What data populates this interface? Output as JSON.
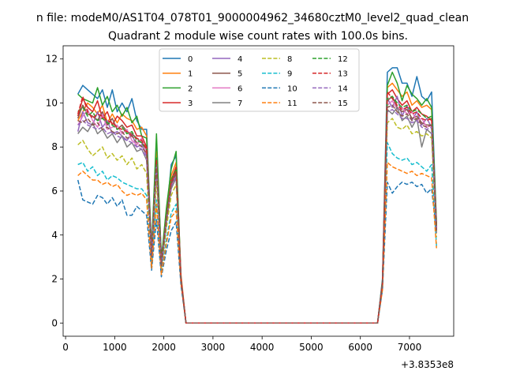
{
  "figure": {
    "suptitle": "n file: modeM0/AS1T04_078T01_9000004962_34680cztM0_level2_quad_clean",
    "title": "Quadrant 2 module wise count rates with 100.0s bins."
  },
  "chart_data": {
    "type": "line",
    "title": "Quadrant 2 module wise count rates with 100.0s bins.",
    "xlabel": "",
    "ylabel": "",
    "x_offset_label": "+3.8353e8",
    "xlim": [
      -50,
      7900
    ],
    "ylim": [
      -0.6,
      12.6
    ],
    "x_ticks": [
      0,
      1000,
      2000,
      3000,
      4000,
      5000,
      6000,
      7000
    ],
    "x_tick_labels": [
      "0",
      "1000",
      "2000",
      "3000",
      "4000",
      "5000",
      "6000",
      "7000"
    ],
    "y_ticks": [
      0,
      2,
      4,
      6,
      8,
      10,
      12
    ],
    "y_tick_labels": [
      "0",
      "2",
      "4",
      "6",
      "8",
      "10",
      "12"
    ],
    "grid": false,
    "legend": {
      "placement": "top-center",
      "columns": 4
    },
    "x": [
      250,
      350,
      450,
      550,
      650,
      750,
      850,
      950,
      1050,
      1150,
      1250,
      1350,
      1450,
      1550,
      1650,
      1750,
      1850,
      1950,
      2050,
      2150,
      2250,
      2350,
      2450,
      2550,
      6350,
      6450,
      6550,
      6650,
      6750,
      6850,
      6950,
      7050,
      7150,
      7250,
      7350,
      7450,
      7550
    ],
    "series": [
      {
        "name": "0",
        "color": "#1f77b4",
        "dash": "solid",
        "values": [
          10.4,
          10.8,
          10.6,
          10.4,
          10.2,
          10.6,
          9.8,
          10.6,
          9.6,
          10.0,
          9.6,
          10.2,
          9.2,
          8.8,
          8.8,
          3.4,
          8.0,
          3.0,
          4.8,
          7.2,
          7.6,
          2.0,
          0.0,
          0.0,
          0.0,
          2.0,
          11.4,
          11.6,
          11.6,
          10.9,
          10.9,
          10.3,
          11.2,
          10.3,
          10.1,
          10.5,
          4.5
        ]
      },
      {
        "name": "1",
        "color": "#ff7f0e",
        "dash": "solid",
        "values": [
          9.2,
          9.6,
          10.0,
          9.8,
          9.5,
          9.9,
          9.1,
          9.5,
          9.1,
          9.5,
          9.3,
          9.2,
          8.8,
          8.9,
          8.5,
          3.2,
          7.8,
          2.8,
          4.9,
          6.7,
          7.3,
          2.2,
          0.0,
          0.0,
          0.0,
          1.9,
          10.7,
          10.9,
          10.6,
          10.3,
          10.5,
          9.9,
          10.1,
          9.8,
          9.9,
          9.7,
          4.4
        ]
      },
      {
        "name": "2",
        "color": "#2ca02c",
        "dash": "solid",
        "values": [
          10.4,
          10.2,
          10.1,
          10.0,
          10.7,
          9.9,
          10.3,
          9.6,
          9.9,
          9.4,
          9.8,
          9.1,
          9.4,
          8.5,
          8.4,
          3.3,
          8.6,
          2.9,
          5.2,
          7.0,
          7.8,
          2.0,
          0.0,
          0.0,
          0.0,
          1.9,
          10.8,
          11.4,
          10.9,
          10.1,
          10.8,
          10.4,
          10.2,
          9.9,
          10.2,
          9.8,
          4.5
        ]
      },
      {
        "name": "3",
        "color": "#d62728",
        "dash": "solid",
        "values": [
          9.4,
          10.2,
          9.8,
          9.6,
          10.1,
          9.3,
          9.6,
          9.0,
          9.4,
          9.2,
          8.9,
          9.0,
          8.5,
          8.5,
          8.0,
          3.1,
          7.4,
          2.7,
          4.8,
          6.5,
          7.1,
          2.0,
          0.0,
          0.0,
          0.0,
          1.8,
          10.4,
          10.6,
          10.2,
          9.9,
          10.1,
          9.6,
          9.8,
          9.5,
          9.4,
          9.2,
          4.3
        ]
      },
      {
        "name": "4",
        "color": "#9467bd",
        "dash": "solid",
        "values": [
          8.7,
          9.6,
          9.1,
          9.0,
          9.6,
          8.9,
          9.2,
          8.6,
          8.7,
          8.5,
          8.3,
          8.6,
          8.0,
          8.1,
          7.6,
          3.0,
          7.2,
          2.6,
          4.6,
          6.3,
          6.8,
          2.0,
          0.0,
          0.0,
          0.0,
          1.8,
          10.2,
          9.8,
          10.3,
          9.4,
          9.9,
          9.2,
          9.6,
          9.0,
          9.3,
          8.9,
          4.2
        ]
      },
      {
        "name": "5",
        "color": "#8c564b",
        "dash": "solid",
        "values": [
          9.3,
          9.9,
          9.5,
          9.4,
          9.2,
          9.6,
          9.0,
          9.3,
          8.8,
          9.0,
          8.7,
          8.6,
          8.4,
          8.2,
          7.8,
          3.1,
          7.3,
          2.7,
          4.7,
          6.4,
          6.9,
          2.0,
          0.0,
          0.0,
          0.0,
          1.8,
          10.1,
          10.3,
          9.8,
          9.6,
          9.7,
          9.3,
          9.4,
          9.1,
          9.0,
          9.0,
          4.2
        ]
      },
      {
        "name": "6",
        "color": "#e377c2",
        "dash": "solid",
        "values": [
          9.0,
          9.4,
          9.7,
          9.2,
          8.9,
          9.5,
          8.8,
          8.9,
          9.0,
          8.6,
          8.8,
          8.3,
          8.1,
          8.4,
          7.7,
          3.0,
          7.3,
          2.6,
          4.6,
          6.2,
          6.7,
          2.0,
          0.0,
          0.0,
          0.0,
          1.8,
          9.9,
          10.1,
          9.7,
          9.8,
          9.5,
          9.6,
          9.2,
          9.3,
          8.9,
          9.0,
          4.1
        ]
      },
      {
        "name": "7",
        "color": "#7f7f7f",
        "dash": "solid",
        "values": [
          8.6,
          8.9,
          8.7,
          9.1,
          8.6,
          8.8,
          8.4,
          8.6,
          8.2,
          8.5,
          8.0,
          8.2,
          7.8,
          7.9,
          7.4,
          2.9,
          7.0,
          2.6,
          4.5,
          6.1,
          6.6,
          2.0,
          0.0,
          0.0,
          0.0,
          1.8,
          9.7,
          9.5,
          9.8,
          9.2,
          9.4,
          8.9,
          9.3,
          8.0,
          8.8,
          8.6,
          4.1
        ]
      },
      {
        "name": "8",
        "color": "#bcbd22",
        "dash": "dashed",
        "values": [
          8.1,
          8.3,
          7.9,
          7.6,
          7.8,
          8.0,
          7.5,
          7.7,
          7.4,
          7.6,
          7.2,
          7.5,
          7.0,
          7.2,
          6.8,
          2.8,
          6.5,
          2.5,
          4.3,
          5.8,
          6.3,
          1.9,
          0.0,
          0.0,
          0.0,
          1.7,
          9.1,
          9.3,
          8.9,
          8.8,
          9.0,
          8.6,
          8.7,
          8.5,
          8.6,
          8.4,
          3.9
        ]
      },
      {
        "name": "9",
        "color": "#17becf",
        "dash": "dashed",
        "values": [
          7.2,
          7.3,
          6.9,
          7.1,
          6.7,
          6.9,
          6.5,
          6.7,
          6.6,
          6.4,
          6.3,
          6.2,
          6.1,
          6.1,
          5.8,
          2.6,
          5.6,
          2.3,
          3.8,
          5.0,
          5.4,
          1.8,
          0.0,
          0.0,
          0.0,
          1.6,
          8.2,
          7.7,
          7.5,
          7.4,
          7.5,
          7.2,
          7.3,
          7.1,
          6.9,
          7.2,
          3.5
        ]
      },
      {
        "name": "10",
        "color": "#1f77b4",
        "dash": "dashed",
        "values": [
          6.5,
          5.6,
          5.5,
          5.4,
          5.8,
          5.7,
          5.4,
          5.7,
          5.3,
          5.6,
          4.9,
          4.9,
          5.3,
          5.1,
          4.9,
          2.4,
          4.7,
          2.1,
          3.3,
          4.2,
          4.6,
          1.7,
          0.0,
          0.0,
          0.0,
          1.5,
          6.4,
          5.9,
          6.2,
          6.4,
          6.3,
          6.4,
          6.2,
          6.3,
          5.9,
          6.1,
          4.1
        ]
      },
      {
        "name": "11",
        "color": "#ff7f0e",
        "dash": "dashed",
        "values": [
          6.7,
          6.9,
          6.7,
          6.5,
          6.5,
          6.3,
          6.4,
          6.2,
          6.3,
          6.0,
          5.8,
          5.9,
          5.8,
          5.9,
          5.6,
          2.5,
          5.4,
          2.2,
          3.6,
          4.8,
          5.1,
          1.8,
          0.0,
          0.0,
          0.0,
          1.5,
          7.3,
          7.1,
          7.0,
          6.9,
          6.8,
          6.9,
          6.7,
          6.8,
          6.7,
          6.6,
          3.4
        ]
      },
      {
        "name": "12",
        "color": "#2ca02c",
        "dash": "dashed",
        "values": [
          9.6,
          9.8,
          9.4,
          9.6,
          9.2,
          9.3,
          9.1,
          9.0,
          8.8,
          8.9,
          8.6,
          8.7,
          8.3,
          8.2,
          7.9,
          3.1,
          7.5,
          2.7,
          4.8,
          6.5,
          7.0,
          2.0,
          0.0,
          0.0,
          0.0,
          1.8,
          10.2,
          10.3,
          10.0,
          9.8,
          9.9,
          9.6,
          9.7,
          9.5,
          9.3,
          9.4,
          4.3
        ]
      },
      {
        "name": "13",
        "color": "#d62728",
        "dash": "dashed",
        "values": [
          9.5,
          10.3,
          9.6,
          9.3,
          9.5,
          9.4,
          9.2,
          9.1,
          8.9,
          8.8,
          8.7,
          8.5,
          8.4,
          8.3,
          7.9,
          3.1,
          7.4,
          2.7,
          4.7,
          6.4,
          6.9,
          2.0,
          0.0,
          0.0,
          0.0,
          1.8,
          10.5,
          10.2,
          9.9,
          9.7,
          9.8,
          9.5,
          9.6,
          9.3,
          9.2,
          9.3,
          4.3
        ]
      },
      {
        "name": "14",
        "color": "#9467bd",
        "dash": "dashed",
        "values": [
          9.0,
          9.2,
          9.0,
          8.9,
          8.8,
          8.9,
          8.6,
          8.7,
          8.5,
          8.4,
          8.3,
          8.2,
          8.0,
          7.9,
          7.5,
          3.0,
          7.1,
          2.6,
          4.6,
          6.2,
          6.7,
          2.0,
          0.0,
          0.0,
          0.0,
          1.8,
          9.6,
          9.7,
          9.5,
          9.3,
          9.3,
          9.1,
          9.2,
          8.9,
          8.8,
          8.9,
          4.1
        ]
      },
      {
        "name": "15",
        "color": "#8c564b",
        "dash": "dashed",
        "values": [
          9.2,
          9.1,
          9.3,
          9.0,
          9.1,
          8.8,
          8.9,
          8.7,
          8.6,
          8.7,
          8.4,
          8.5,
          8.2,
          8.0,
          7.7,
          3.0,
          7.2,
          2.6,
          4.6,
          6.3,
          6.8,
          2.0,
          0.0,
          0.0,
          0.0,
          1.8,
          9.8,
          9.9,
          9.6,
          9.4,
          9.5,
          9.2,
          9.3,
          9.0,
          8.9,
          9.0,
          4.2
        ]
      }
    ]
  }
}
